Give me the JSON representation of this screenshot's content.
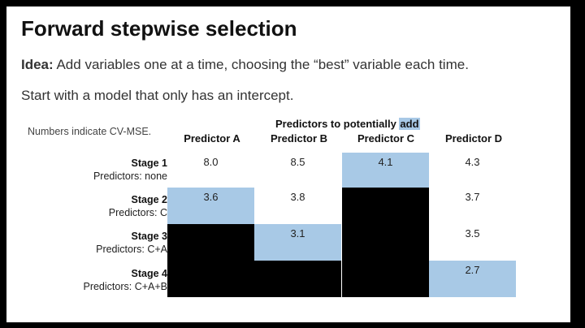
{
  "title": "Forward stepwise selection",
  "idea_label": "Idea:",
  "idea_text": " Add variables one at a time, choosing the “best” variable each time.",
  "start_text": "Start with a model that only has an intercept.",
  "note": "Numbers indicate CV-MSE.",
  "column_group": {
    "text": "Predictors to potentially ",
    "highlight": "add"
  },
  "columns": [
    "Predictor A",
    "Predictor B",
    "Predictor C",
    "Predictor D"
  ],
  "rows": [
    {
      "stage": "Stage 1",
      "predictors": "Predictors: none",
      "cells": [
        {
          "v": "8.0",
          "s": ""
        },
        {
          "v": "8.5",
          "s": ""
        },
        {
          "v": "4.1",
          "s": "best"
        },
        {
          "v": "4.3",
          "s": ""
        }
      ]
    },
    {
      "stage": "Stage 2",
      "predictors": "Predictors: C",
      "cells": [
        {
          "v": "3.6",
          "s": "best"
        },
        {
          "v": "3.8",
          "s": ""
        },
        {
          "v": "",
          "s": "out"
        },
        {
          "v": "3.7",
          "s": ""
        }
      ]
    },
    {
      "stage": "Stage 3",
      "predictors": "Predictors: C+A",
      "cells": [
        {
          "v": "",
          "s": "out"
        },
        {
          "v": "3.1",
          "s": "best"
        },
        {
          "v": "",
          "s": "out"
        },
        {
          "v": "3.5",
          "s": ""
        }
      ]
    },
    {
      "stage": "Stage 4",
      "predictors": "Predictors: C+A+B",
      "cells": [
        {
          "v": "",
          "s": "out"
        },
        {
          "v": "",
          "s": "out"
        },
        {
          "v": "",
          "s": "out"
        },
        {
          "v": "2.7",
          "s": "best"
        }
      ]
    }
  ],
  "colors": {
    "best_highlight": "#a8c9e6",
    "excluded_fill": "#000000",
    "frame": "#000000"
  }
}
